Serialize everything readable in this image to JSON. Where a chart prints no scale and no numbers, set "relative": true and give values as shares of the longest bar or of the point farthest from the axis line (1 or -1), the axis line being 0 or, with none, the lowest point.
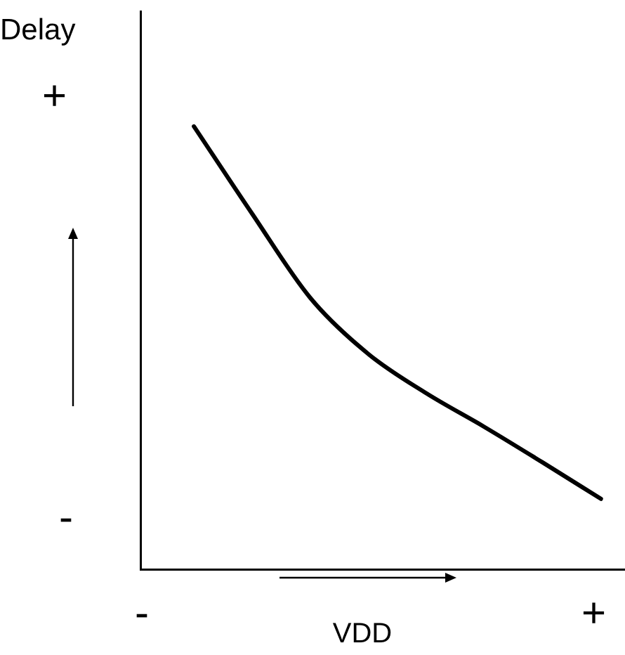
{
  "chart_data": {
    "type": "line",
    "relative": true,
    "xlabel": "VDD",
    "ylabel": "Delay",
    "categories": [
      null,
      null,
      null,
      null,
      null,
      null,
      null,
      null
    ],
    "series": [
      {
        "color": "#000000",
        "values": [
          1,
          0.803,
          0.613,
          0.486,
          0.397,
          0.321,
          0.241,
          0.159
        ]
      }
    ],
    "annotations": [
      "+",
      "-",
      "-",
      "+"
    ],
    "grid": false,
    "legend": false,
    "marker": "none",
    "line_style": "solid"
  }
}
